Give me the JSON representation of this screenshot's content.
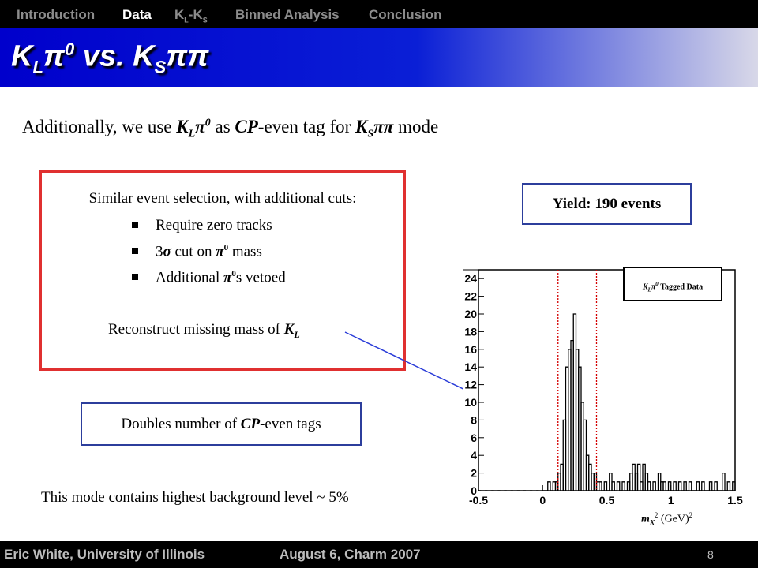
{
  "nav": {
    "items": [
      {
        "label": "Introduction"
      },
      {
        "label": "Data"
      },
      {
        "label_main1": "K",
        "label_sub1": "L",
        "label_dash": "-K",
        "label_sub2": "S"
      },
      {
        "label": "Binned Analysis"
      },
      {
        "label": "Conclusion"
      }
    ],
    "active": "Data"
  },
  "title": {
    "k1": "K",
    "sub1": "L",
    "pi": "π",
    "sup": "0",
    "vs": " vs. K",
    "sub2": "S",
    "tail": "ππ"
  },
  "lead": {
    "pre": "Additionally, we use ",
    "k": "K",
    "ksub": "L",
    "pi": "π",
    "pisup": "0",
    "mid": " as ",
    "cp": "CP",
    "mid2": "-even tag for ",
    "k2": "K",
    "k2sub": "S",
    "tail": "ππ",
    "end": " mode"
  },
  "selection": {
    "heading": "Similar event selection, with additional cuts:",
    "bullet1": "Require zero tracks",
    "bullet2_pre": "3",
    "bullet2_sigma": "σ",
    "bullet2_mid": " cut on ",
    "bullet2_pi": "π",
    "bullet2_sup": "0",
    "bullet2_end": " mass",
    "bullet3_pre": "Additional ",
    "bullet3_pi": "π",
    "bullet3_sup": "0",
    "bullet3_end": "s vetoed",
    "recon_pre": "Reconstruct missing mass of ",
    "recon_k": "K",
    "recon_sub": "L"
  },
  "yield": "Yield: 190 events",
  "tags": {
    "pre": "Doubles number of ",
    "cp": "CP",
    "end": "-even tags"
  },
  "background_note": "This mode contains highest background level ~ 5%",
  "legend": {
    "k": "K",
    "sub": "L",
    "pi": "π",
    "sup": "0",
    "text": " Tagged Data"
  },
  "xlabel": {
    "m": "m",
    "sub": "K",
    "sup": "2",
    "unit": " (GeV)",
    "unitsup": "2"
  },
  "footer": {
    "author": "Eric White, University of Illinois",
    "date": "August 6, Charm 2007",
    "page": "8"
  },
  "colors": {
    "accent_red": "#e03030",
    "box_blue": "#2c3e9c",
    "arrow_blue": "#2a3cd8",
    "cut_red": "#d40000",
    "title_blue": "#0000cc"
  },
  "chart_data": {
    "type": "bar",
    "x": [
      -0.5,
      0.0,
      0.5,
      1.0,
      1.5
    ],
    "yticks": [
      0,
      2,
      4,
      6,
      8,
      10,
      12,
      14,
      16,
      18,
      20,
      22,
      24
    ],
    "xlim": [
      -0.5,
      1.5
    ],
    "ylim": [
      0,
      25
    ],
    "cut_lines": [
      0.12,
      0.42
    ],
    "bins": [
      [
        -0.5,
        0
      ],
      [
        -0.45,
        0
      ],
      [
        -0.4,
        0
      ],
      [
        -0.35,
        0
      ],
      [
        -0.3,
        0
      ],
      [
        -0.25,
        0
      ],
      [
        -0.2,
        0
      ],
      [
        -0.15,
        0
      ],
      [
        -0.1,
        0
      ],
      [
        -0.05,
        0
      ],
      [
        0.0,
        0
      ],
      [
        0.02,
        0
      ],
      [
        0.04,
        1
      ],
      [
        0.06,
        0
      ],
      [
        0.08,
        1
      ],
      [
        0.1,
        1
      ],
      [
        0.12,
        2
      ],
      [
        0.14,
        3
      ],
      [
        0.16,
        8
      ],
      [
        0.18,
        14
      ],
      [
        0.2,
        16
      ],
      [
        0.22,
        17
      ],
      [
        0.24,
        20
      ],
      [
        0.26,
        16
      ],
      [
        0.28,
        14
      ],
      [
        0.3,
        10
      ],
      [
        0.32,
        8
      ],
      [
        0.34,
        4
      ],
      [
        0.36,
        3
      ],
      [
        0.38,
        2
      ],
      [
        0.4,
        2
      ],
      [
        0.42,
        1
      ],
      [
        0.44,
        1
      ],
      [
        0.46,
        0
      ],
      [
        0.48,
        1
      ],
      [
        0.5,
        0
      ],
      [
        0.52,
        2
      ],
      [
        0.54,
        1
      ],
      [
        0.56,
        0
      ],
      [
        0.58,
        1
      ],
      [
        0.6,
        0
      ],
      [
        0.62,
        1
      ],
      [
        0.64,
        0
      ],
      [
        0.66,
        1
      ],
      [
        0.68,
        2
      ],
      [
        0.7,
        3
      ],
      [
        0.72,
        2
      ],
      [
        0.74,
        3
      ],
      [
        0.76,
        1
      ],
      [
        0.78,
        3
      ],
      [
        0.8,
        2
      ],
      [
        0.82,
        1
      ],
      [
        0.84,
        0
      ],
      [
        0.86,
        1
      ],
      [
        0.88,
        0
      ],
      [
        0.9,
        2
      ],
      [
        0.92,
        1
      ],
      [
        0.94,
        1
      ],
      [
        0.96,
        0
      ],
      [
        0.98,
        1
      ],
      [
        1.0,
        0
      ],
      [
        1.02,
        1
      ],
      [
        1.04,
        0
      ],
      [
        1.06,
        1
      ],
      [
        1.08,
        0
      ],
      [
        1.1,
        1
      ],
      [
        1.12,
        0
      ],
      [
        1.14,
        1
      ],
      [
        1.16,
        0
      ],
      [
        1.18,
        0
      ],
      [
        1.2,
        1
      ],
      [
        1.22,
        0
      ],
      [
        1.24,
        1
      ],
      [
        1.26,
        0
      ],
      [
        1.28,
        0
      ],
      [
        1.3,
        1
      ],
      [
        1.32,
        0
      ],
      [
        1.34,
        1
      ],
      [
        1.36,
        0
      ],
      [
        1.38,
        0
      ],
      [
        1.4,
        2
      ],
      [
        1.42,
        0
      ],
      [
        1.44,
        1
      ],
      [
        1.46,
        0
      ],
      [
        1.48,
        1
      ]
    ]
  }
}
